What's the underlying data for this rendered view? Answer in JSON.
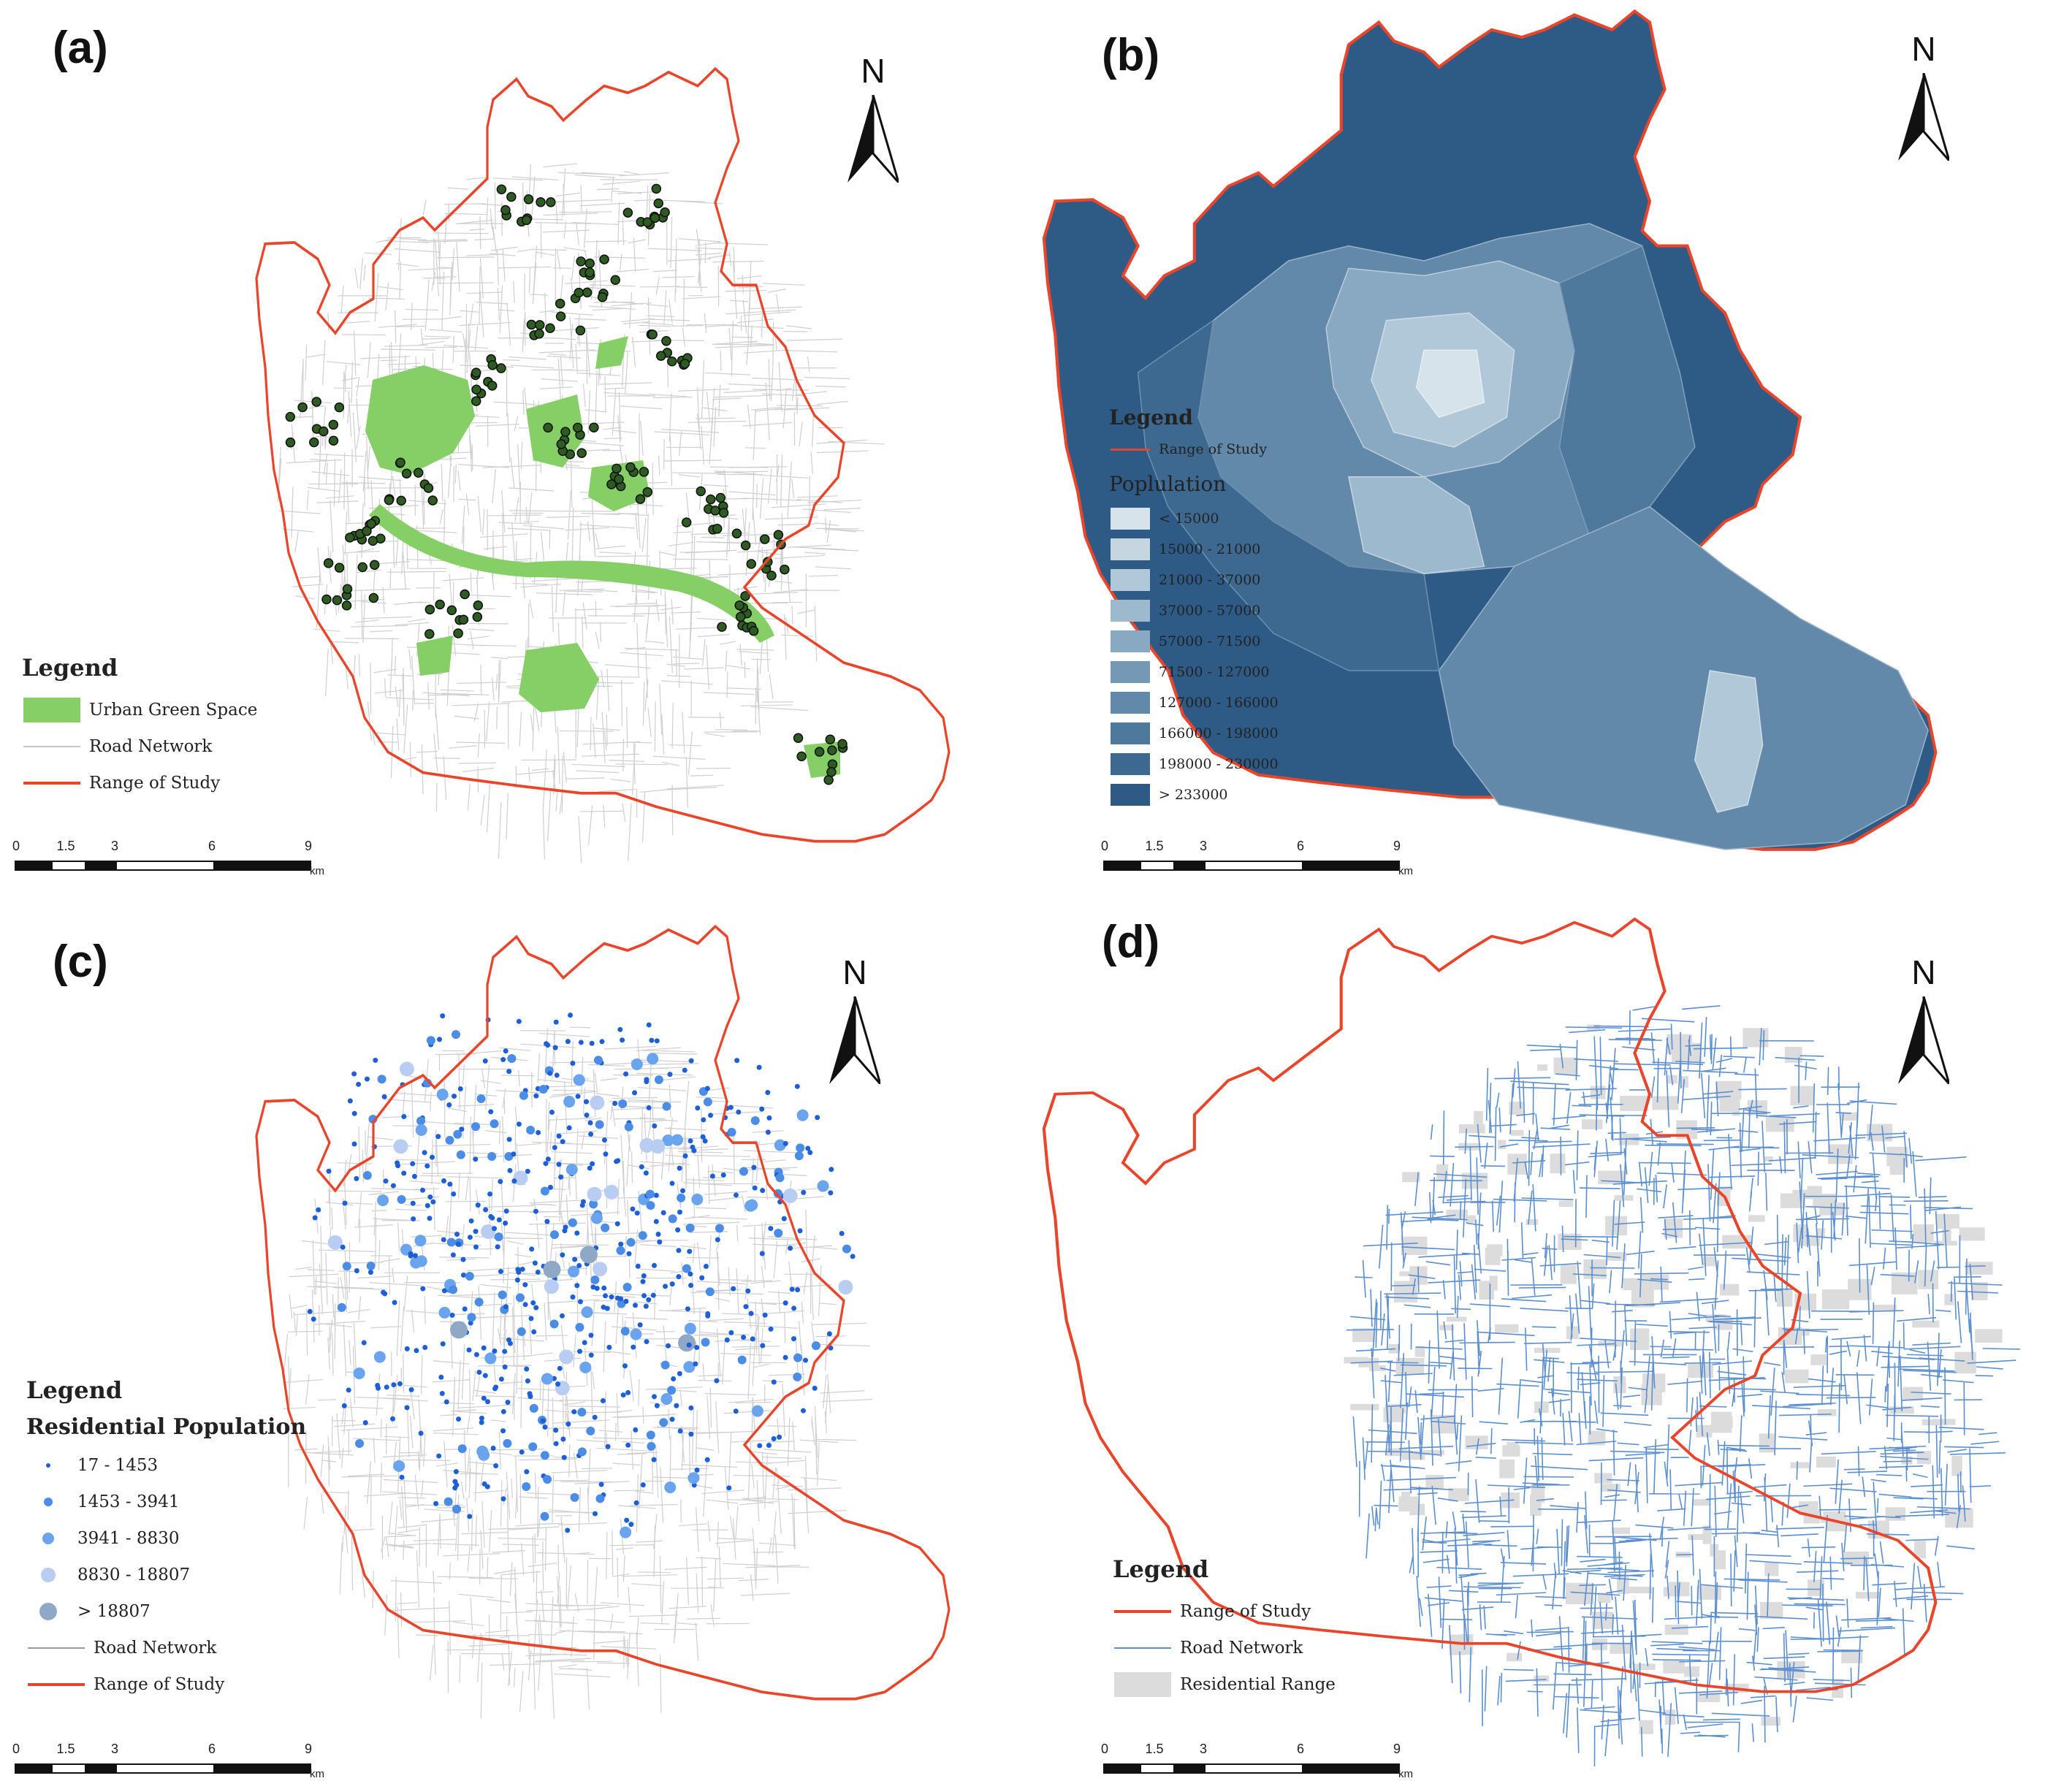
{
  "panels": {
    "a": {
      "label": "(a)",
      "north": "N",
      "legend": {
        "title": "Legend",
        "items": [
          {
            "label": "Urban Green Space",
            "color": "#86cf66"
          },
          {
            "label": "Road Network",
            "color": "#c8c8c8"
          },
          {
            "label": "Range of Study",
            "color": "#e8452a"
          }
        ]
      },
      "scale": {
        "ticks": [
          "0",
          "1.5",
          "3",
          "6",
          "9"
        ],
        "unit": "km"
      }
    },
    "b": {
      "label": "(b)",
      "north": "N",
      "legend": {
        "title": "Legend",
        "range_label": "Range of Study",
        "subtitle": "Poplulation",
        "classes": [
          {
            "label": "< 15000",
            "color": "#d6e3ea"
          },
          {
            "label": "15000 - 21000",
            "color": "#c5d6e1"
          },
          {
            "label": "21000 - 37000",
            "color": "#b1c8d8"
          },
          {
            "label": "37000 - 57000",
            "color": "#9db9cd"
          },
          {
            "label": "57000 - 71500",
            "color": "#89a9c2"
          },
          {
            "label": "71500 - 127000",
            "color": "#7598b5"
          },
          {
            "label": "127000 - 166000",
            "color": "#6288aa"
          },
          {
            "label": "166000 - 198000",
            "color": "#4f789d"
          },
          {
            "label": "198000 - 230000",
            "color": "#3d6890"
          },
          {
            "label": "> 233000",
            "color": "#2d5b85"
          }
        ]
      },
      "scale": {
        "ticks": [
          "0",
          "1.5",
          "3",
          "6",
          "9"
        ],
        "unit": "km"
      }
    },
    "c": {
      "label": "(c)",
      "north": "N",
      "legend": {
        "title": "Legend",
        "subtitle": "Residential Population",
        "classes": [
          {
            "label": "17 - 1453",
            "color": "#1d5fd6"
          },
          {
            "label": "1453 - 3941",
            "color": "#4b8de6"
          },
          {
            "label": "3941 - 8830",
            "color": "#6aa3ee"
          },
          {
            "label": "8830 - 18807",
            "color": "#b9cdf3"
          },
          {
            "label": "> 18807",
            "color": "#8fa8c6"
          }
        ],
        "items": [
          {
            "label": "Road Network",
            "color": "#9a9a9a"
          },
          {
            "label": "Range of Study",
            "color": "#e8452a"
          }
        ]
      },
      "scale": {
        "ticks": [
          "0",
          "1.5",
          "3",
          "6",
          "9"
        ],
        "unit": "km"
      }
    },
    "d": {
      "label": "(d)",
      "north": "N",
      "legend": {
        "title": "Legend",
        "items": [
          {
            "label": "Range of Study",
            "color": "#e8452a"
          },
          {
            "label": "Road Network",
            "color": "#5b8fd0"
          },
          {
            "label": "Residential Range",
            "color": "#dcdcdc"
          }
        ]
      },
      "scale": {
        "ticks": [
          "0",
          "1.5",
          "3",
          "6",
          "9"
        ],
        "unit": "km"
      }
    }
  }
}
